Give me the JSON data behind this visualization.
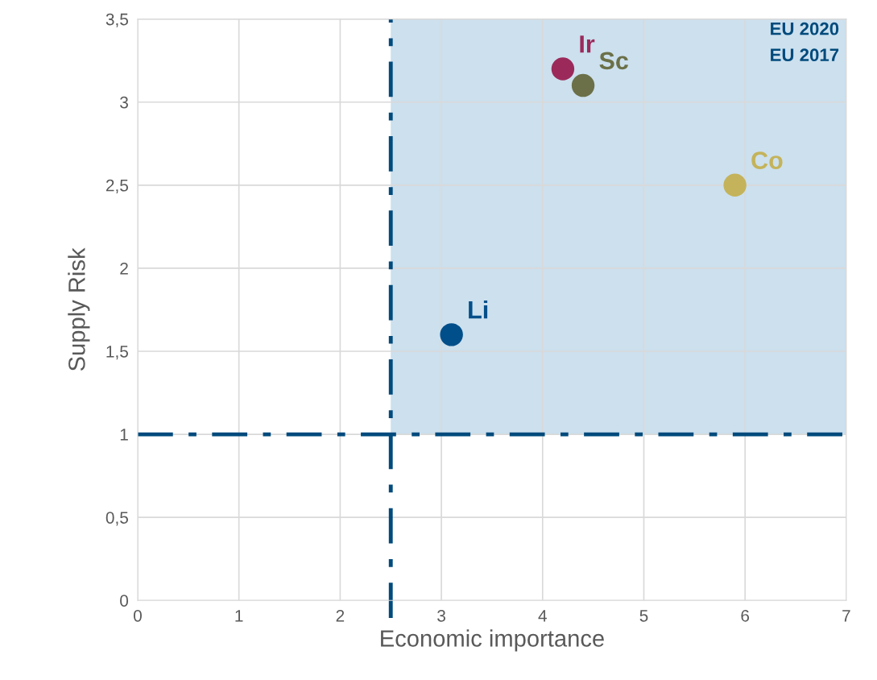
{
  "chart_data": {
    "type": "scatter",
    "xlabel": "Economic importance",
    "ylabel": "Supply Risk",
    "series": [
      {
        "name": "Li",
        "color": "#004f8a",
        "x": [
          3.1
        ],
        "values": [
          1.6
        ]
      },
      {
        "name": "Ir",
        "color": "#9b2a5a",
        "x": [
          4.2
        ],
        "values": [
          3.2
        ]
      },
      {
        "name": "Sc",
        "color": "#6b7048",
        "x": [
          4.4
        ],
        "values": [
          3.1
        ]
      },
      {
        "name": "Co",
        "color": "#c4b35a",
        "x": [
          5.9
        ],
        "values": [
          2.5
        ]
      }
    ],
    "xlim": [
      0,
      7
    ],
    "xticks": [
      0,
      1,
      2,
      3,
      4,
      5,
      6,
      7
    ],
    "ylim": [
      0,
      3.5
    ],
    "yticks": [
      0,
      {
        "value": 0.5,
        "label": "0,5"
      },
      1,
      {
        "value": 1.5,
        "label": "1,5"
      },
      2,
      {
        "value": 2.5,
        "label": "2,5"
      },
      3,
      {
        "value": 3.5,
        "label": "3,5"
      }
    ],
    "ref_lines": [
      {
        "axis": "x",
        "value": 2.5,
        "label": null,
        "color": "#004a7c",
        "line_style": "dashdot"
      },
      {
        "axis": "y",
        "value": 1,
        "label": null,
        "color": "#004a7c",
        "line_style": "dashdot"
      }
    ],
    "bands": [
      {
        "axis": "x",
        "from": 2.5,
        "to": 7,
        "label": null,
        "color": "#cce0ee"
      }
    ],
    "annotations": [
      "EU 2020",
      "EU 2017"
    ],
    "grid": true,
    "legend": false,
    "marker": "circle"
  }
}
